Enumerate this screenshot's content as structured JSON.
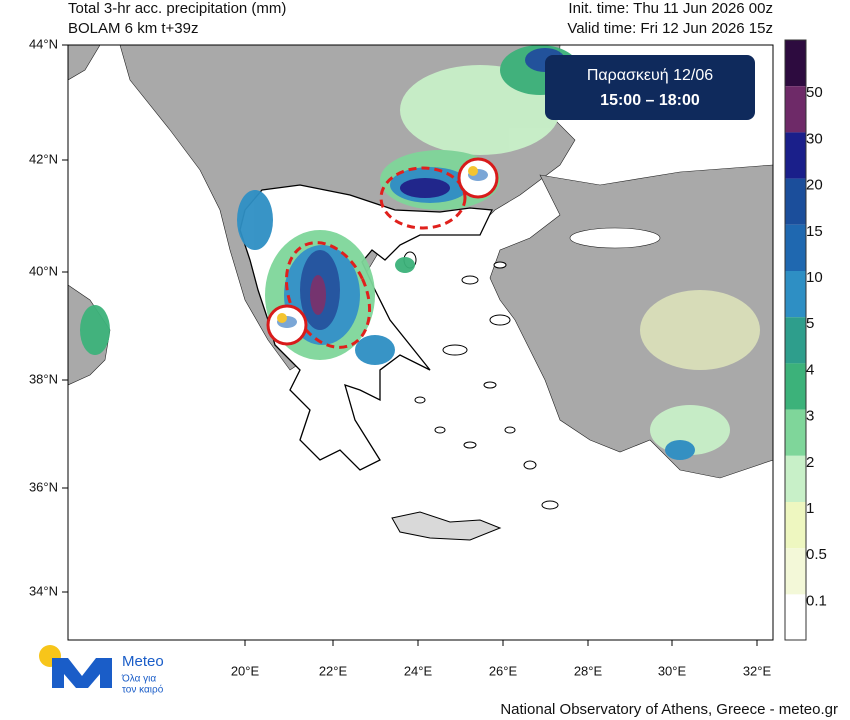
{
  "header": {
    "title": "Total 3-hr acc. precipitation (mm)",
    "model": "BOLAM 6 km t+39z",
    "init_time": "Init. time: Thu 11 Jun 2026 00z",
    "valid_time": "Valid time: Fri 12 Jun 2026 15z"
  },
  "badge": {
    "day": "Παρασκευή 12/06",
    "hours": "15:00 – 18:00"
  },
  "lat_labels": [
    "44°N",
    "42°N",
    "40°N",
    "38°N",
    "36°N",
    "34°N"
  ],
  "lon_labels": [
    "20°E",
    "22°E",
    "24°E",
    "26°E",
    "28°E",
    "30°E",
    "32°E"
  ],
  "colorbar_labels": [
    "50",
    "30",
    "20",
    "15",
    "10",
    "5",
    "4",
    "3",
    "2",
    "1",
    "0.5",
    "0.1"
  ],
  "logo": {
    "name": "Meteo",
    "tagline_1": "Όλα για",
    "tagline_2": "τον καιρό"
  },
  "footer": "National Observatory of Athens, Greece - meteo.gr"
}
